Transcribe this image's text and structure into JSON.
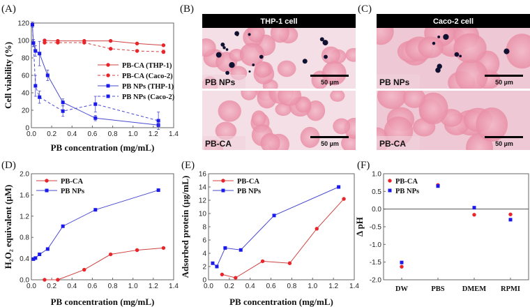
{
  "panels": {
    "A": "(A)",
    "B": "(B)",
    "C": "(C)",
    "D": "(D)",
    "E": "(E)",
    "F": "(F)"
  },
  "micrographs": [
    {
      "panel": "B",
      "title": "THP-1 cell",
      "images": [
        {
          "label": "PB NPs",
          "scale": "50 µm"
        },
        {
          "label": "PB-CA",
          "scale": "50 µm"
        }
      ]
    },
    {
      "panel": "C",
      "title": "Caco-2 cell",
      "images": [
        {
          "label": "PB NPs",
          "scale": "50 µm"
        },
        {
          "label": "PB-CA",
          "scale": "50 µm"
        }
      ]
    }
  ],
  "colors": {
    "red": "#e8252a",
    "blue": "#1a1aeb",
    "redline": "#d04040",
    "blueline": "#4a4ad0"
  },
  "chart_data": [
    {
      "id": "A",
      "type": "line",
      "xlabel": "PB concentration (mg/mL)",
      "ylabel": "Cell viability (%)",
      "xlim": [
        0,
        1.4
      ],
      "ylim": [
        0,
        120
      ],
      "xticks": [
        0,
        0.2,
        0.4,
        0.6,
        0.8,
        1.0,
        1.2,
        1.4
      ],
      "yticks": [
        0,
        20,
        40,
        60,
        80,
        100,
        120
      ],
      "legend": "center-right",
      "series": [
        {
          "name": "PB-CA (THP-1)",
          "color": "red",
          "dash": false,
          "marker": "circle",
          "x": [
            0.13,
            0.26,
            0.52,
            0.78,
            1.04,
            1.3
          ],
          "y": [
            100,
            99.5,
            99.5,
            99.5,
            96.5,
            94.5
          ],
          "err": [
            1,
            1,
            1,
            1,
            1,
            1
          ]
        },
        {
          "name": "PB-CA (Caco-2)",
          "color": "red",
          "dash": true,
          "marker": "circle",
          "x": [
            0.13,
            0.26,
            0.52,
            0.78,
            1.04,
            1.3
          ],
          "y": [
            97.5,
            97.5,
            97.5,
            90.5,
            88,
            87
          ],
          "err": [
            1,
            1,
            1,
            1,
            1,
            2
          ]
        },
        {
          "name": "PB NPs (THP-1)",
          "color": "blue",
          "dash": false,
          "marker": "square",
          "x": [
            0.01,
            0.02,
            0.04,
            0.08,
            0.16,
            0.31,
            0.63,
            1.25
          ],
          "y": [
            118,
            97,
            88,
            85,
            60,
            29,
            11,
            3
          ],
          "err": [
            3,
            4,
            6,
            14,
            6,
            4,
            3,
            2
          ]
        },
        {
          "name": "PB NPs (Caco-2)",
          "color": "blue",
          "dash": true,
          "marker": "square",
          "x": [
            0.01,
            0.02,
            0.04,
            0.08,
            0.31,
            0.63,
            1.25
          ],
          "y": [
            118,
            97,
            48,
            35,
            19,
            27,
            8
          ],
          "err": [
            3,
            4,
            12,
            7,
            6,
            9,
            10
          ]
        }
      ]
    },
    {
      "id": "D",
      "type": "line",
      "xlabel": "PB concentration (mg/mL)",
      "ylabel": "H₂O₂ equivalent (µM)",
      "xlim": [
        0,
        1.4
      ],
      "ylim": [
        0,
        2.0
      ],
      "xticks": [
        0,
        0.2,
        0.4,
        0.6,
        0.8,
        1.0,
        1.2,
        1.4
      ],
      "yticks": [
        0,
        0.4,
        0.8,
        1.2,
        1.6,
        2.0
      ],
      "ydec": 1,
      "legend": "top-left",
      "series": [
        {
          "name": "PB-CA",
          "color": "red",
          "dash": false,
          "marker": "circle",
          "x": [
            0.13,
            0.26,
            0.52,
            0.78,
            1.04,
            1.3
          ],
          "y": [
            0,
            0,
            0.19,
            0.48,
            0.56,
            0.6
          ]
        },
        {
          "name": "PB NPs",
          "color": "blue",
          "dash": false,
          "marker": "square",
          "x": [
            0.02,
            0.04,
            0.08,
            0.16,
            0.31,
            0.63,
            1.25
          ],
          "y": [
            0.39,
            0.41,
            0.48,
            0.58,
            1.01,
            1.32,
            1.69
          ]
        }
      ]
    },
    {
      "id": "E",
      "type": "line",
      "xlabel": "PB concentration (mg/mL)",
      "ylabel": "Adsorbed protein (µg/mL)",
      "xlim": [
        0,
        1.4
      ],
      "ylim": [
        0,
        16
      ],
      "xticks": [
        0,
        0.2,
        0.4,
        0.6,
        0.8,
        1.0,
        1.2,
        1.4
      ],
      "yticks": [
        0,
        2,
        4,
        6,
        8,
        10,
        12,
        14,
        16
      ],
      "ydec": 0,
      "legend": "top-left",
      "series": [
        {
          "name": "PB-CA",
          "color": "red",
          "dash": false,
          "marker": "circle",
          "x": [
            0.13,
            0.26,
            0.52,
            0.78,
            1.04,
            1.3
          ],
          "y": [
            0.8,
            0.3,
            2.8,
            2.5,
            7.7,
            12.2
          ]
        },
        {
          "name": "PB NPs",
          "color": "blue",
          "dash": false,
          "marker": "square",
          "x": [
            0.04,
            0.08,
            0.16,
            0.31,
            0.63,
            1.25
          ],
          "y": [
            2.5,
            2.0,
            4.8,
            4.5,
            9.7,
            14.0
          ]
        }
      ]
    },
    {
      "id": "F",
      "type": "scatter",
      "xlabel": "",
      "ylabel": "Δ pH",
      "categories": [
        "DW",
        "PBS",
        "DMEM",
        "RPMI"
      ],
      "ylim": [
        -2.0,
        1.0
      ],
      "yticks": [
        -2.0,
        -1.5,
        -1.0,
        -0.5,
        0.0,
        0.5,
        1.0
      ],
      "ydec": 1,
      "legend": "top-left",
      "zero_line": true,
      "series": [
        {
          "name": "PB-CA",
          "color": "red",
          "marker": "circle",
          "y": [
            -1.63,
            0.68,
            -0.16,
            -0.15
          ]
        },
        {
          "name": "PB NPs",
          "color": "blue",
          "marker": "square",
          "y": [
            -1.51,
            0.65,
            0.04,
            -0.3
          ]
        }
      ]
    }
  ]
}
